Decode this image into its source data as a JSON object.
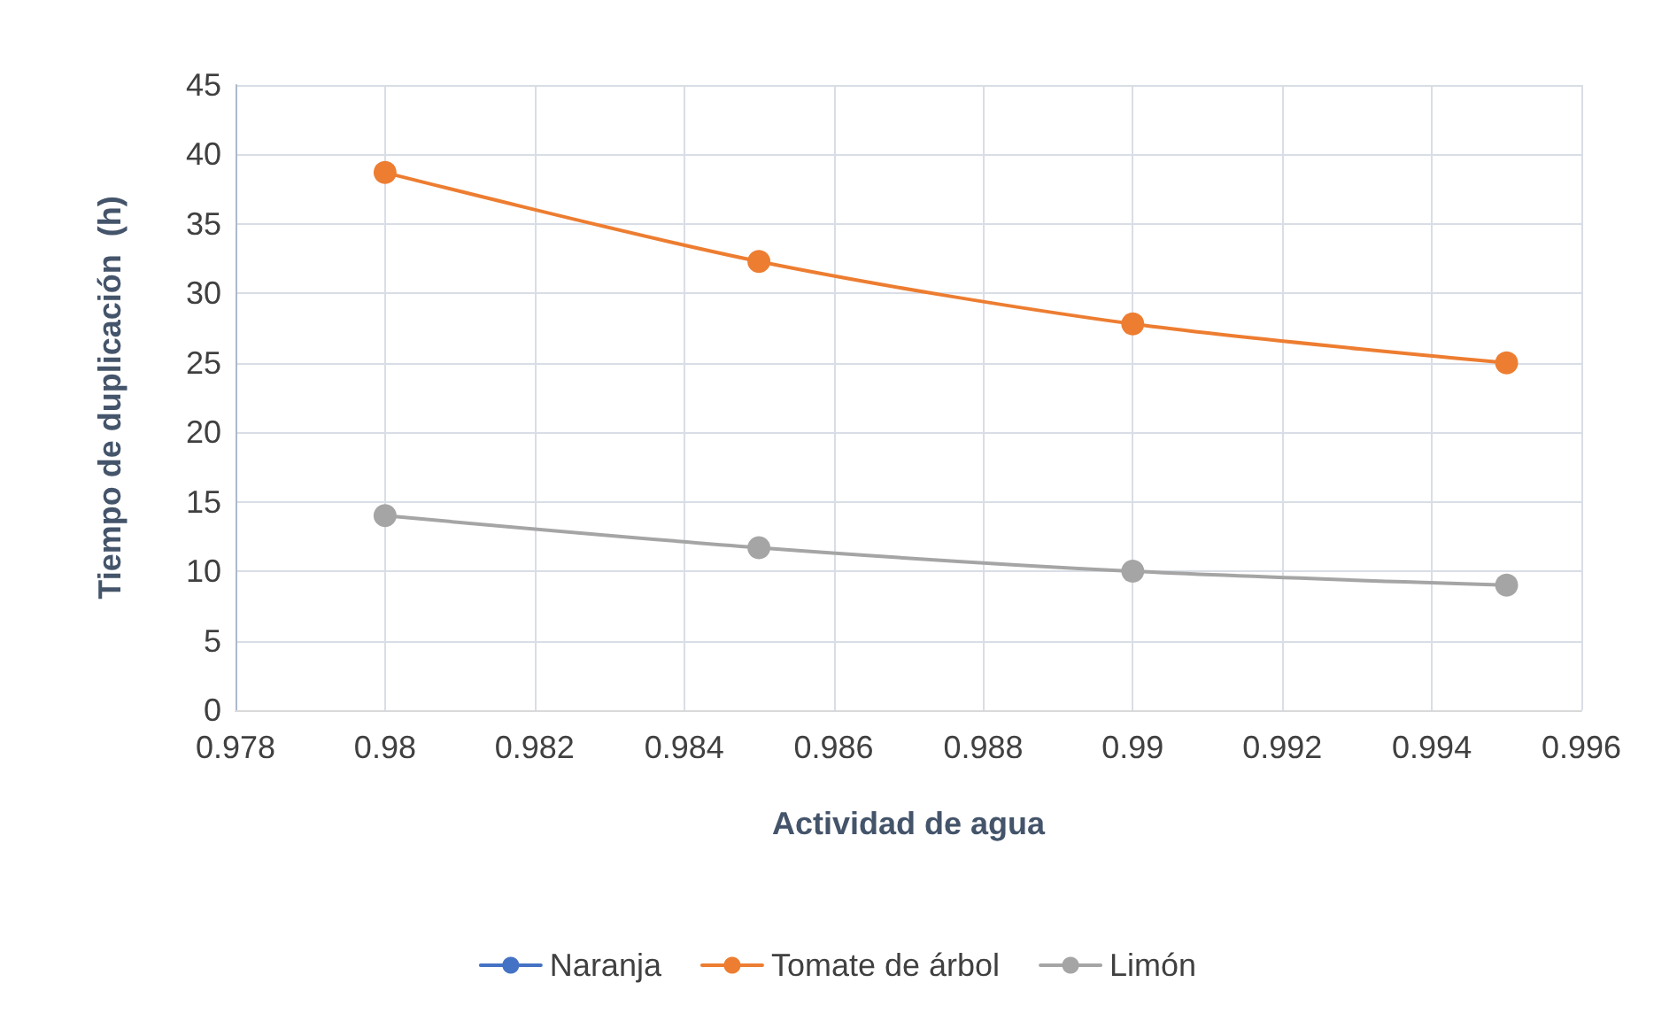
{
  "chart_data": {
    "type": "line",
    "xlabel": "Actividad de agua",
    "ylabel": "Tiempo de duplicación  (h)",
    "x": [
      0.98,
      0.985,
      0.99,
      0.995
    ],
    "series": [
      {
        "name": "Naranja",
        "color": "#4472c4",
        "values": [
          null,
          null,
          null,
          null
        ]
      },
      {
        "name": "Tomate de árbol",
        "color": "#ed7d31",
        "values": [
          38.7,
          32.3,
          27.8,
          25.0
        ]
      },
      {
        "name": "Limón",
        "color": "#a5a5a5",
        "values": [
          14.0,
          11.7,
          10.0,
          9.0
        ]
      }
    ],
    "xlim": [
      0.978,
      0.996
    ],
    "xticks": [
      0.978,
      0.98,
      0.982,
      0.984,
      0.986,
      0.988,
      0.99,
      0.992,
      0.994,
      0.996
    ],
    "ylim": [
      0,
      45
    ],
    "yticks": [
      0,
      5,
      10,
      15,
      20,
      25,
      30,
      35,
      40,
      45
    ],
    "grid": true,
    "legend": "bottom",
    "marker": "circle",
    "line_style": "solid"
  }
}
